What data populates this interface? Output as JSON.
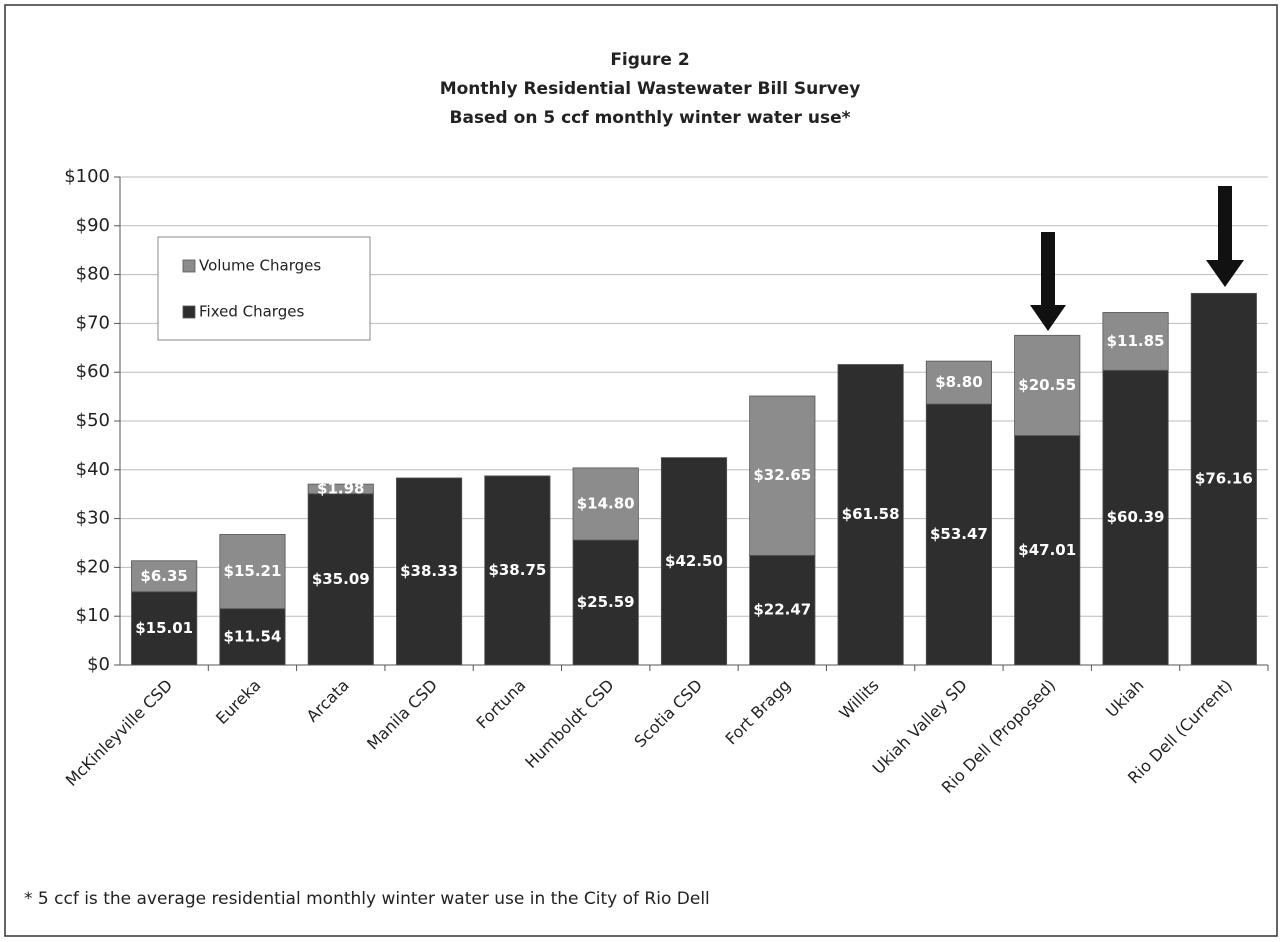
{
  "chart_data": {
    "type": "stacked_bar",
    "title": [
      "Figure 2",
      "Monthly Residential Wastewater Bill Survey",
      "Based on 5 ccf monthly winter water use*"
    ],
    "categories": [
      "McKinleyville CSD",
      "Eureka",
      "Arcata",
      "Manila CSD",
      "Fortuna",
      "Humboldt CSD",
      "Scotia CSD",
      "Fort Bragg",
      "Willits",
      "Ukiah Valley SD",
      "Rio Dell (Proposed)",
      "Ukiah",
      "Rio Dell (Current)"
    ],
    "series": [
      {
        "name": "Fixed Charges",
        "color": "#2e2e2e",
        "values": [
          15.01,
          11.54,
          35.09,
          38.33,
          38.75,
          25.59,
          42.5,
          22.47,
          61.58,
          53.47,
          47.01,
          60.39,
          76.16
        ],
        "value_labels": [
          "$15.01",
          "$11.54",
          "$35.09",
          "$38.33",
          "$38.75",
          "$25.59",
          "$42.50",
          "$22.47",
          "$61.58",
          "$53.47",
          "$47.01",
          "$60.39",
          "$76.16"
        ]
      },
      {
        "name": "Volume Charges",
        "color": "#8c8c8c",
        "values": [
          6.35,
          15.21,
          1.98,
          null,
          null,
          14.8,
          null,
          32.65,
          null,
          8.8,
          20.55,
          11.85,
          null
        ],
        "value_labels": [
          "$6.35",
          "$15.21",
          "$1.98",
          null,
          null,
          "$14.80",
          null,
          "$32.65",
          null,
          "$8.80",
          "$20.55",
          "$11.85",
          null
        ]
      }
    ],
    "ylim": [
      0,
      100
    ],
    "yticks": [
      {
        "value": 0,
        "label": "$0"
      },
      {
        "value": 10,
        "label": "$10"
      },
      {
        "value": 20,
        "label": "$20"
      },
      {
        "value": 30,
        "label": "$30"
      },
      {
        "value": 40,
        "label": "$40"
      },
      {
        "value": 50,
        "label": "$50"
      },
      {
        "value": 60,
        "label": "$60"
      },
      {
        "value": 70,
        "label": "$70"
      },
      {
        "value": 80,
        "label": "$80"
      },
      {
        "value": 90,
        "label": "$90"
      },
      {
        "value": 100,
        "label": "$100"
      }
    ],
    "grid": true,
    "note": "* 5 ccf is the average residential monthly winter water use in the City of Rio Dell"
  }
}
